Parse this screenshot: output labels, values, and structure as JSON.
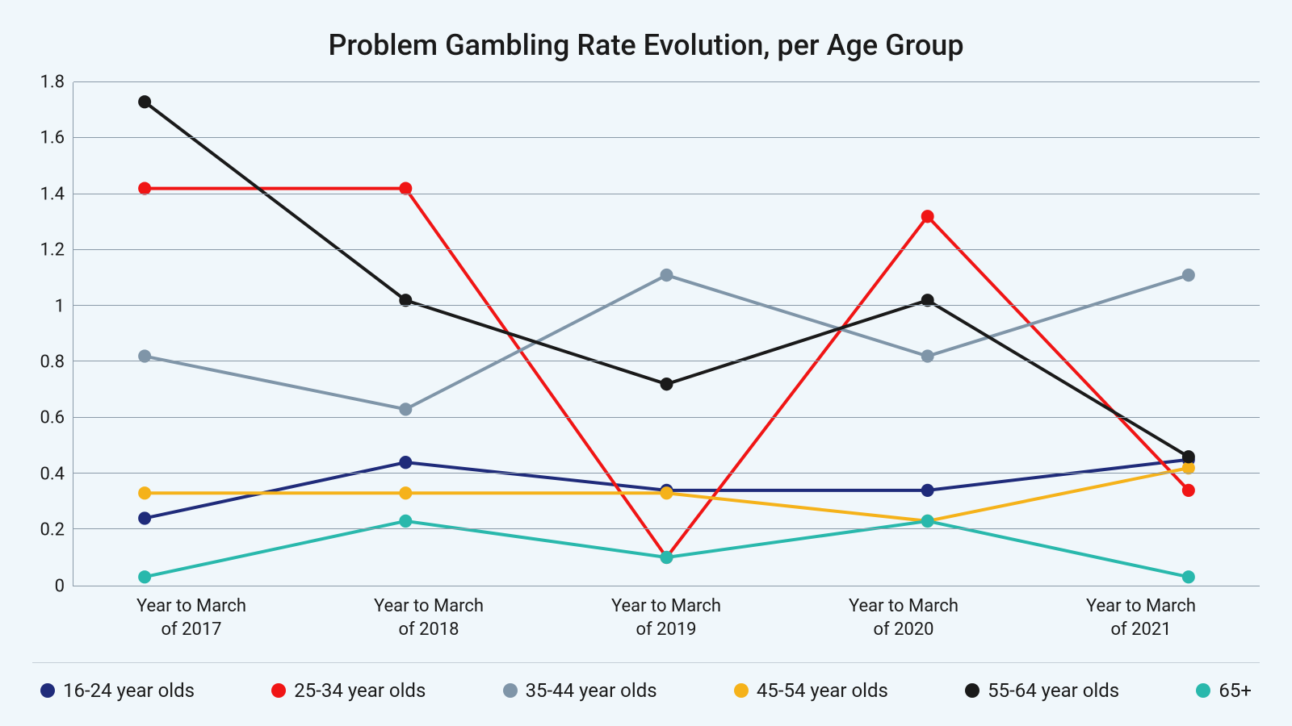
{
  "chart": {
    "type": "line",
    "title": "Problem Gambling Rate Evolution, per Age Group",
    "title_fontsize": 36,
    "background_color": "#f0f7fb",
    "grid_color": "#8a9aa8",
    "axis_color": "#8a9aa8",
    "text_color": "#1a1a1a",
    "label_fontsize": 22,
    "legend_fontsize": 24,
    "ylim": [
      0,
      1.8
    ],
    "yticks": [
      0,
      0.2,
      0.4,
      0.6,
      0.8,
      1,
      1.2,
      1.4,
      1.6,
      1.8
    ],
    "ytick_labels": [
      "0",
      "0.2",
      "0.4",
      "0.6",
      "0.8",
      "1",
      "1.2",
      "1.4",
      "1.6",
      "1.8"
    ],
    "categories": [
      "Year to March\nof 2017",
      "Year to March\nof 2018",
      "Year to March\nof 2019",
      "Year to March\nof 2020",
      "Year to March\nof 2021"
    ],
    "x_positions_pct": [
      6,
      28,
      50,
      72,
      94
    ],
    "line_width": 4,
    "marker_radius": 8,
    "series": [
      {
        "id": "age16_24",
        "label": "16-24 year olds",
        "color": "#1f2b7a",
        "values": [
          0.24,
          0.44,
          0.34,
          0.34,
          0.45
        ]
      },
      {
        "id": "age25_34",
        "label": "25-34 year olds",
        "color": "#f01515",
        "values": [
          1.42,
          1.42,
          0.1,
          1.32,
          0.34
        ]
      },
      {
        "id": "age35_44",
        "label": "35-44 year olds",
        "color": "#7f95a8",
        "values": [
          0.82,
          0.63,
          1.11,
          0.82,
          1.11
        ]
      },
      {
        "id": "age45_54",
        "label": "45-54 year olds",
        "color": "#f5b21a",
        "values": [
          0.33,
          0.33,
          0.33,
          0.23,
          0.42
        ]
      },
      {
        "id": "age55_64",
        "label": "55-64 year olds",
        "color": "#1a1a1a",
        "values": [
          1.73,
          1.02,
          0.72,
          1.02,
          0.46
        ]
      },
      {
        "id": "age65",
        "label": "65+",
        "color": "#29b8ac",
        "values": [
          0.03,
          0.23,
          0.1,
          0.23,
          0.03
        ]
      }
    ]
  }
}
